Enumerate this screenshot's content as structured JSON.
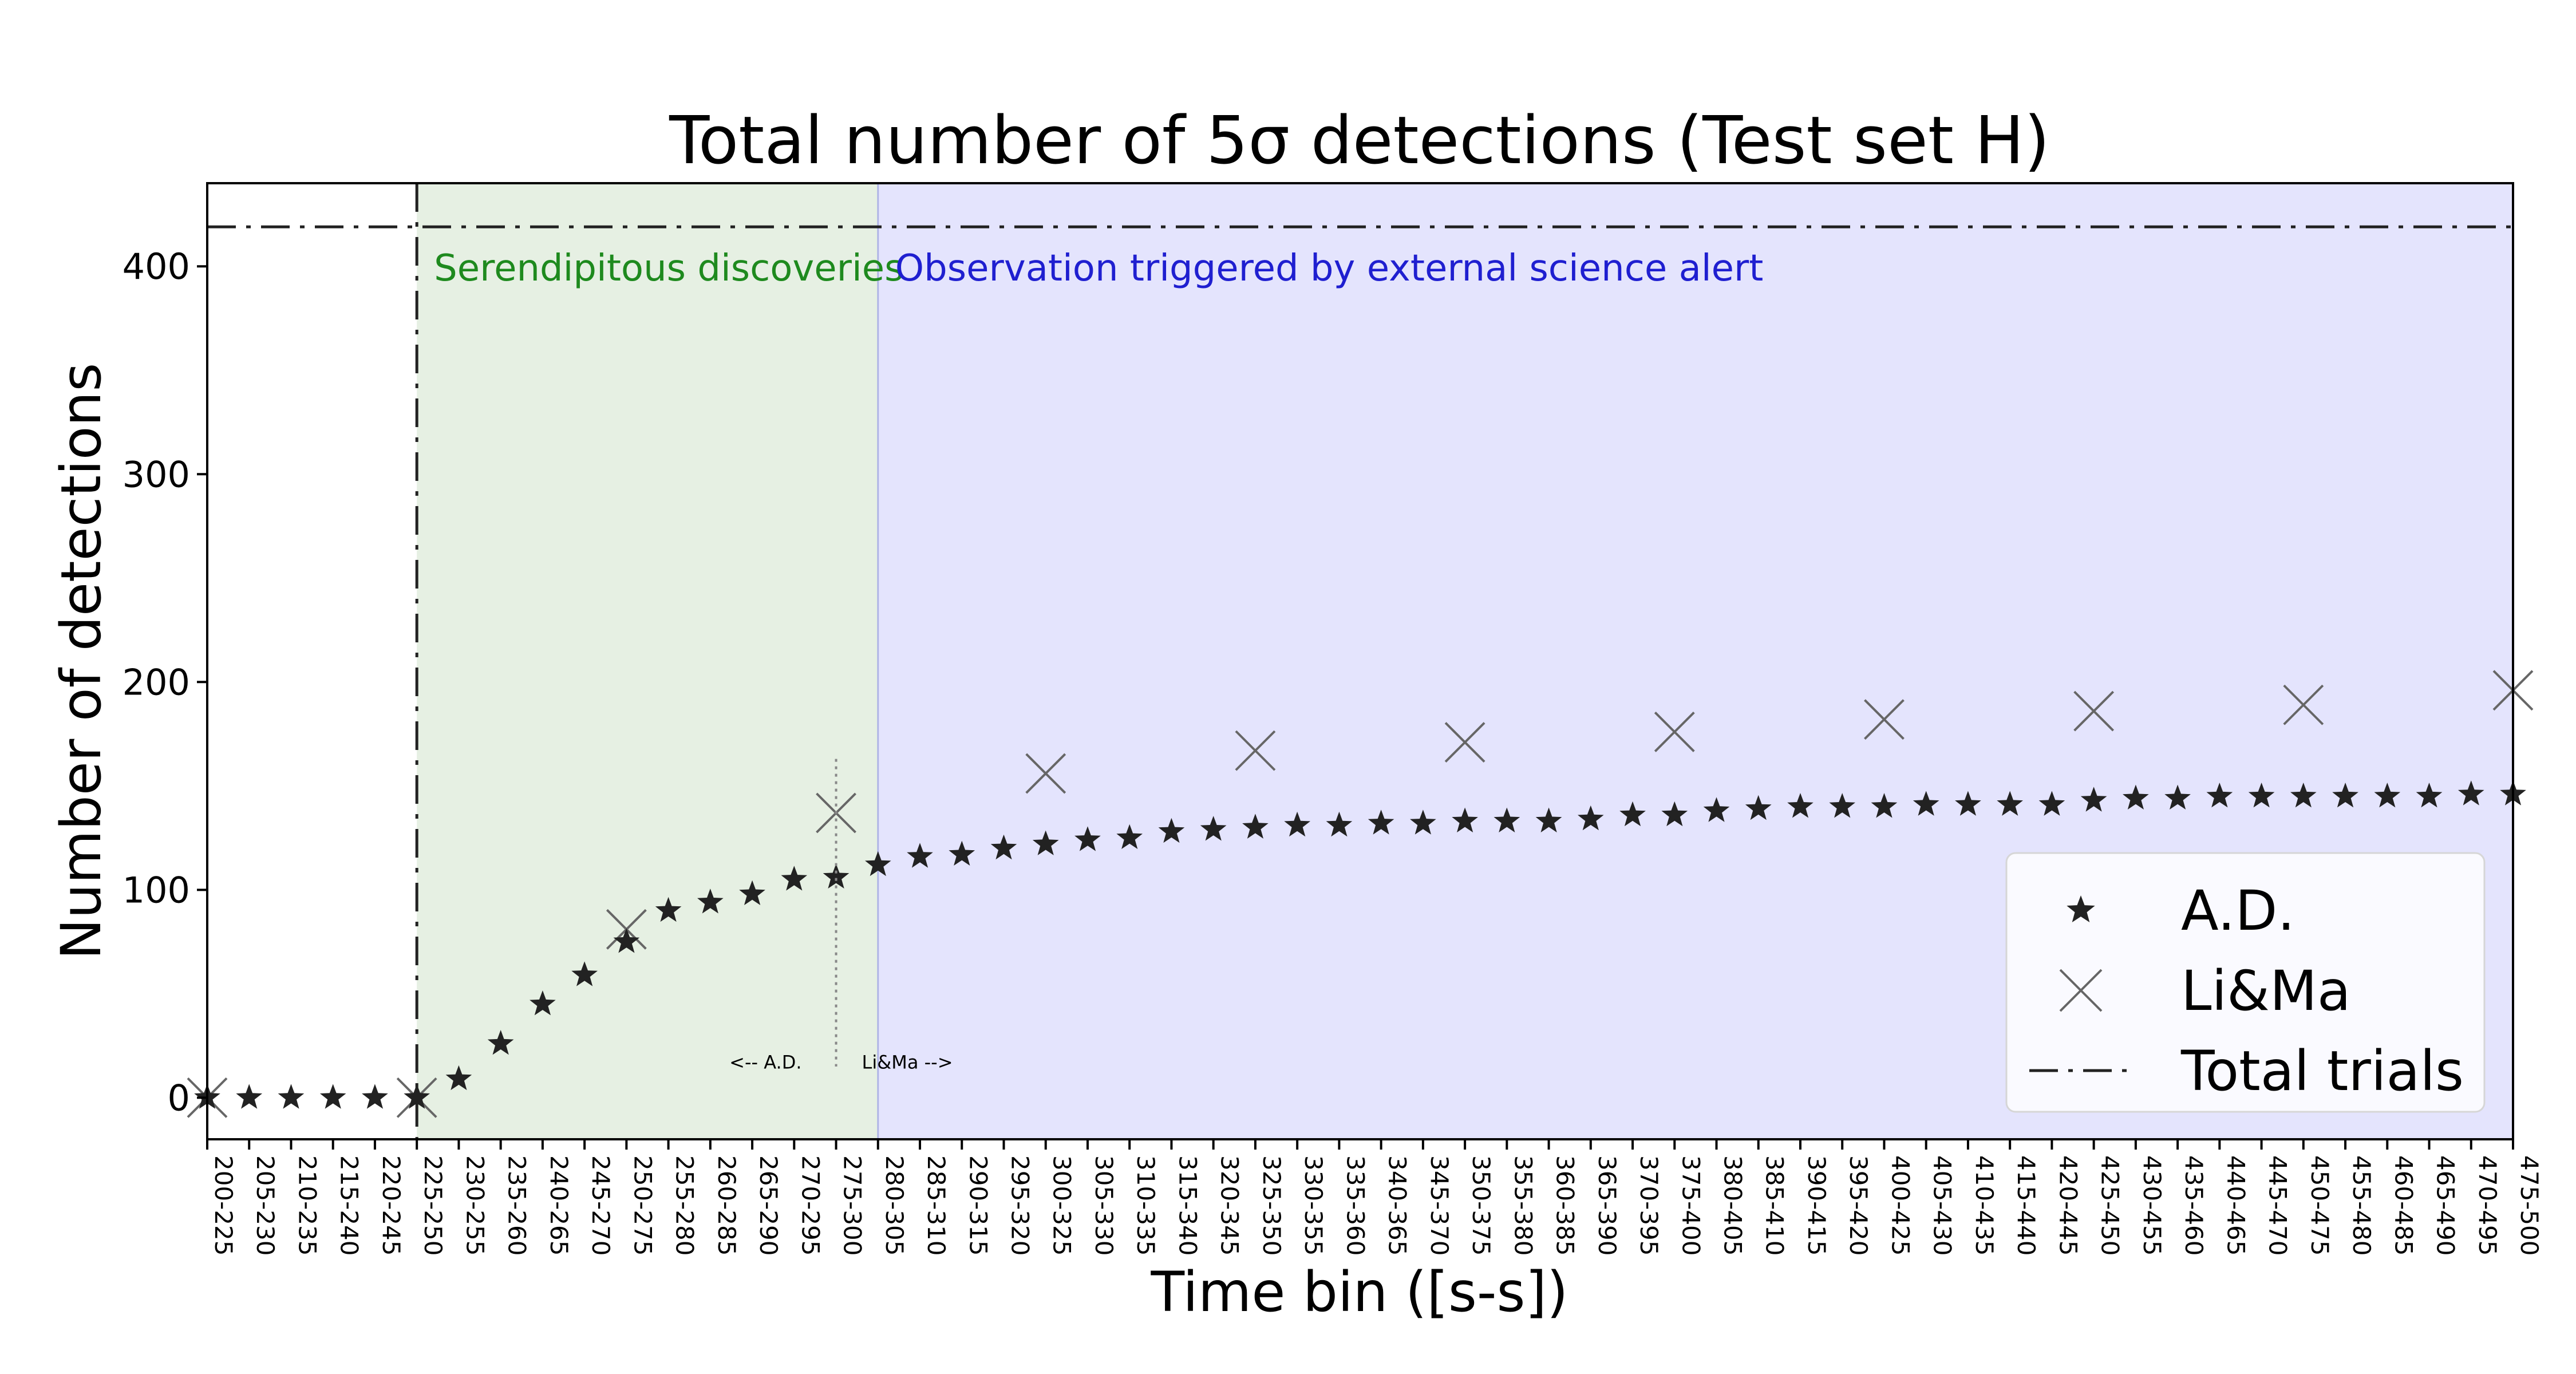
{
  "chart_data": {
    "type": "scatter",
    "title": "Total number of 5σ detections (Test set H)",
    "xlabel": "Time bin ([s-s])",
    "ylabel": "Number of detections",
    "ylim": [
      -20,
      440
    ],
    "yticks": [
      0,
      100,
      200,
      300,
      400
    ],
    "grid": false,
    "legend_placement": "lower-right",
    "categories": [
      "200-225",
      "205-230",
      "210-235",
      "215-240",
      "220-245",
      "225-250",
      "230-255",
      "235-260",
      "240-265",
      "245-270",
      "250-275",
      "255-280",
      "260-285",
      "265-290",
      "270-295",
      "275-300",
      "280-305",
      "285-310",
      "290-315",
      "295-320",
      "300-325",
      "305-330",
      "310-335",
      "315-340",
      "320-345",
      "325-350",
      "330-355",
      "335-360",
      "340-365",
      "345-370",
      "350-375",
      "355-380",
      "360-385",
      "365-390",
      "370-395",
      "375-400",
      "380-405",
      "385-410",
      "390-415",
      "395-420",
      "400-425",
      "405-430",
      "410-435",
      "415-440",
      "420-445",
      "425-450",
      "430-455",
      "435-460",
      "440-465",
      "445-470",
      "450-475",
      "455-480",
      "460-485",
      "465-490",
      "470-495",
      "475-500"
    ],
    "series": [
      {
        "name": "A.D.",
        "marker": "star",
        "color": "#222222",
        "x": [
          "200-225",
          "205-230",
          "210-235",
          "215-240",
          "220-245",
          "225-250",
          "230-255",
          "235-260",
          "240-265",
          "245-270",
          "250-275",
          "255-280",
          "260-285",
          "265-290",
          "270-295",
          "275-300",
          "280-305",
          "285-310",
          "290-315",
          "295-320",
          "300-325",
          "305-330",
          "310-335",
          "315-340",
          "320-345",
          "325-350",
          "330-355",
          "335-360",
          "340-365",
          "345-370",
          "350-375",
          "355-380",
          "360-385",
          "365-390",
          "370-395",
          "375-400",
          "380-405",
          "385-410",
          "390-415",
          "395-420",
          "400-425",
          "405-430",
          "410-435",
          "415-440",
          "420-445",
          "425-450",
          "430-455",
          "435-460",
          "440-465",
          "445-470",
          "450-475",
          "455-480",
          "460-485",
          "465-490",
          "470-495",
          "475-500"
        ],
        "values": [
          0,
          0,
          0,
          0,
          0,
          0,
          9,
          26,
          45,
          59,
          75,
          90,
          94,
          98,
          105,
          106,
          112,
          116,
          117,
          120,
          122,
          124,
          125,
          128,
          129,
          130,
          131,
          131,
          132,
          132,
          133,
          133,
          133,
          134,
          136,
          136,
          138,
          139,
          140,
          140,
          140,
          141,
          141,
          141,
          141,
          143,
          144,
          144,
          145,
          145,
          145,
          145,
          145,
          145,
          146,
          146
        ]
      },
      {
        "name": "Li&Ma",
        "marker": "x",
        "color": "#666666",
        "x": [
          "200-225",
          "225-250",
          "250-275",
          "275-300",
          "300-325",
          "325-350",
          "350-375",
          "375-400",
          "400-425",
          "425-450",
          "450-475",
          "475-500"
        ],
        "values": [
          0,
          0,
          81,
          137,
          156,
          167,
          171,
          176,
          182,
          186,
          189,
          196
        ]
      },
      {
        "name": "Total trials",
        "marker": "dashdot-line",
        "color": "#222222",
        "value": 419
      }
    ],
    "regions": [
      {
        "label": "Serendipitous discoveries",
        "from": "225-250",
        "to": "280-305",
        "color": "#e6f0e3",
        "text_color": "#1e8a1e"
      },
      {
        "label": "Observation triggered by external science alert",
        "from": "280-305",
        "to": "475-500",
        "color": "#e4e4fd",
        "text_color": "#1f1fd0"
      }
    ],
    "annotations": {
      "left": "<-- A.D.",
      "right": "Li&Ma -->",
      "at": "275-300"
    },
    "vertical_line": {
      "at": "225-250",
      "style": "dashdot"
    }
  }
}
